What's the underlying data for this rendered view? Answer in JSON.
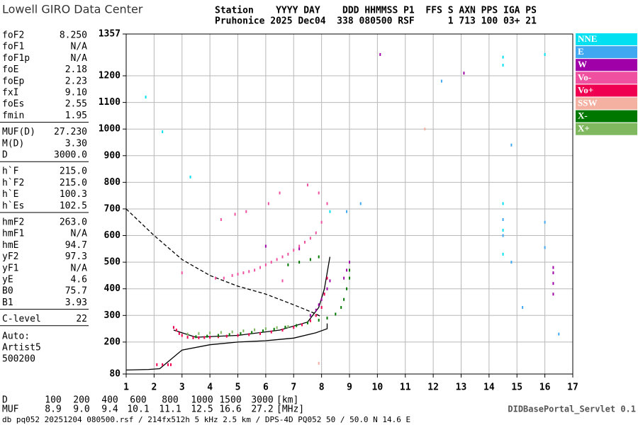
{
  "header": {
    "logo": "Lowell GIRO Data Center",
    "line1": "Station    YYYY DAY    DDD HHMMSS P1  FFS S AXN PPS IGA PS",
    "line2": "Pruhonice 2025 Dec04  338 080500 RSF      1 713 100 03+ 21"
  },
  "parameters": [
    [
      [
        "foF2",
        "8.250"
      ],
      [
        "foF1",
        "N/A"
      ],
      [
        "foF1p",
        "N/A"
      ],
      [
        "foE",
        "2.18"
      ],
      [
        "foEp",
        "2.23"
      ],
      [
        "fxI",
        "9.10"
      ],
      [
        "foEs",
        "2.55"
      ],
      [
        "fmin",
        "1.95"
      ]
    ],
    [
      [
        "MUF(D)",
        "27.230"
      ],
      [
        "M(D)",
        "3.30"
      ],
      [
        "D",
        "3000.0"
      ]
    ],
    [
      [
        "h`F",
        "215.0"
      ],
      [
        "h`F2",
        "215.0"
      ],
      [
        "h`E",
        "100.3"
      ],
      [
        "h`Es",
        "102.5"
      ]
    ],
    [
      [
        "hmF2",
        "263.0"
      ],
      [
        "hmF1",
        "N/A"
      ],
      [
        "hmE",
        "94.7"
      ],
      [
        "yF2",
        "97.3"
      ],
      [
        "yF1",
        "N/A"
      ],
      [
        "yE",
        "4.6"
      ],
      [
        "B0",
        "75.7"
      ],
      [
        "B1",
        "3.93"
      ]
    ],
    [
      [
        "C-level",
        "22"
      ]
    ]
  ],
  "auto": [
    "Auto:",
    "Artist5",
    "500200"
  ],
  "scale": {
    "d_label": "D",
    "d": [
      "100",
      "200",
      "400",
      "600",
      "800",
      "1000",
      "1500",
      "3000",
      "[km]"
    ],
    "muf_label": "MUF",
    "muf": [
      "8.9",
      "9.0",
      "9.4",
      "10.1",
      "11.1",
      "12.5",
      "16.6",
      "27.2",
      "[MHz]"
    ]
  },
  "footer": {
    "left": "db pq052 20251204 080500.rsf / 214fx512h 5 kHz 2.5 km / DPS-4D PQ052 50 / 50.0 N 14.6 E",
    "right": "DIDBasePortal_Servlet 0.1"
  },
  "chart_data": {
    "type": "scatter",
    "grid": true,
    "xlim": [
      1,
      17
    ],
    "xticks": [
      1,
      2,
      3,
      4,
      5,
      6,
      7,
      8,
      9,
      10,
      11,
      12,
      13,
      14,
      15,
      16,
      17
    ],
    "ylim": [
      80,
      1357
    ],
    "yticks": [
      80,
      200,
      300,
      400,
      500,
      600,
      700,
      800,
      900,
      1000,
      1100,
      1200,
      1357
    ],
    "series": [
      {
        "name": "NNE",
        "color": "#00e0f0",
        "x": [
          14.5,
          14.5,
          14.5,
          14.5,
          14.5,
          1.7,
          2.3,
          16.0,
          3.3,
          8.3
        ],
        "values": [
          1270,
          1240,
          720,
          620,
          530,
          1120,
          990,
          1280,
          820,
          690
        ]
      },
      {
        "name": "E",
        "color": "#40a8f0",
        "x": [
          14.5,
          14.5,
          16.0,
          16.0,
          14.8,
          14.8,
          15.2,
          16.5,
          8.9,
          9.4,
          12.3
        ],
        "values": [
          660,
          600,
          650,
          555,
          940,
          500,
          330,
          230,
          690,
          720,
          1180
        ]
      },
      {
        "name": "W",
        "color": "#a000a8",
        "x": [
          7.6,
          7.8,
          7.9,
          8.0,
          8.1,
          8.2,
          8.3,
          8.8,
          8.9,
          9.0,
          10.1,
          16.3,
          16.3,
          16.3,
          16.3,
          13.1,
          7.2,
          6.0
        ],
        "values": [
          300,
          320,
          340,
          360,
          380,
          400,
          430,
          440,
          470,
          500,
          1280,
          380,
          420,
          460,
          480,
          1210,
          550,
          560
        ]
      },
      {
        "name": "Vo-",
        "color": "#f050a0",
        "x": [
          4.2,
          4.5,
          4.8,
          5.0,
          5.2,
          5.4,
          5.6,
          5.8,
          6.0,
          6.2,
          6.4,
          6.6,
          6.8,
          7.0,
          7.2,
          7.4,
          7.6,
          7.8,
          8.0,
          8.2,
          4.4,
          4.9,
          5.3,
          6.1,
          6.5,
          7.5,
          7.9,
          3.0,
          6.6
        ],
        "values": [
          440,
          440,
          450,
          455,
          460,
          465,
          470,
          480,
          490,
          500,
          510,
          520,
          530,
          545,
          560,
          575,
          590,
          610,
          650,
          720,
          660,
          680,
          690,
          720,
          760,
          790,
          760,
          460,
          430
        ]
      },
      {
        "name": "Vo+",
        "color": "#f00050",
        "x": [
          2.7,
          2.8,
          2.9,
          3.0,
          3.2,
          3.4,
          3.6,
          3.8,
          4.0,
          4.3,
          4.6,
          5.0,
          5.4,
          5.8,
          6.2,
          6.6,
          7.0,
          7.3,
          7.6,
          7.8,
          8.0,
          8.1,
          8.2,
          2.1,
          2.3,
          2.5,
          2.6
        ],
        "values": [
          255,
          245,
          232,
          225,
          218,
          216,
          216,
          217,
          218,
          220,
          222,
          225,
          228,
          232,
          238,
          245,
          255,
          265,
          280,
          300,
          330,
          380,
          440,
          115,
          115,
          115,
          115
        ]
      },
      {
        "name": "SSW",
        "color": "#f4b0a0",
        "x": [
          11.7,
          7.9
        ],
        "values": [
          1000,
          120
        ]
      },
      {
        "name": "X-",
        "color": "#007800",
        "x": [
          3.5,
          3.9,
          4.3,
          4.7,
          5.1,
          5.5,
          5.9,
          6.3,
          6.7,
          7.1,
          7.5,
          7.9,
          8.2,
          8.5,
          8.7,
          8.8,
          8.9,
          9.0,
          9.0,
          6.8,
          7.2,
          7.6,
          7.9
        ],
        "values": [
          220,
          222,
          225,
          228,
          232,
          236,
          242,
          248,
          256,
          262,
          272,
          282,
          290,
          305,
          330,
          360,
          400,
          440,
          470,
          490,
          500,
          510,
          520
        ]
      },
      {
        "name": "X+",
        "color": "#80b860",
        "x": [
          3.2,
          3.6,
          4.0,
          4.4,
          4.8,
          5.2,
          5.6,
          6.0,
          6.4,
          6.8
        ],
        "values": [
          230,
          232,
          234,
          236,
          238,
          242,
          246,
          250,
          254,
          258
        ]
      }
    ],
    "lines": [
      {
        "style": "dashed",
        "color": "#000000",
        "x": [
          1,
          2,
          3,
          4,
          5,
          6,
          7,
          7.7,
          8
        ],
        "values": [
          700,
          600,
          510,
          450,
          410,
          380,
          340,
          310,
          295
        ]
      },
      {
        "style": "solid",
        "color": "#000000",
        "x": [
          1,
          1.8,
          2.2,
          3,
          4,
          5,
          6,
          7,
          7.8,
          8.2,
          8.2
        ],
        "values": [
          95,
          97,
          100,
          170,
          190,
          200,
          205,
          215,
          235,
          250,
          270
        ]
      },
      {
        "style": "solid",
        "color": "#000000",
        "x": [
          2.7,
          3.5,
          5,
          6.5,
          7.5,
          7.9,
          8.1,
          8.3
        ],
        "values": [
          245,
          218,
          225,
          245,
          275,
          330,
          400,
          520
        ]
      }
    ]
  }
}
